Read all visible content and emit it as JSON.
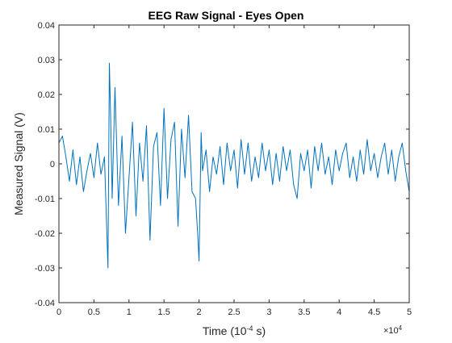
{
  "chart_data": {
    "type": "line",
    "title": "EEG Raw Signal - Eyes Open",
    "xlabel": "Time (10",
    "xlabel_exponent": "-4",
    "xlabel_suffix": " s)",
    "ylabel": "Measured Signal (V)",
    "x_multiplier_base": "×10",
    "x_multiplier_exponent": "4",
    "xlim": [
      0,
      5
    ],
    "ylim": [
      -0.04,
      0.04
    ],
    "xticks": [
      0,
      0.5,
      1,
      1.5,
      2,
      2.5,
      3,
      3.5,
      4,
      4.5,
      5
    ],
    "xtick_labels": [
      "0",
      "0.5",
      "1",
      "1.5",
      "2",
      "2.5",
      "3",
      "3.5",
      "4",
      "4.5",
      "5"
    ],
    "yticks": [
      -0.04,
      -0.03,
      -0.02,
      -0.01,
      0,
      0.01,
      0.02,
      0.03,
      0.04
    ],
    "ytick_labels": [
      "-0.04",
      "-0.03",
      "-0.02",
      "-0.01",
      "0",
      "0.01",
      "0.02",
      "0.03",
      "0.04"
    ],
    "grid": false,
    "box": true,
    "series": [
      {
        "color": "#0072BD",
        "x": [
          0,
          0.05,
          0.1,
          0.15,
          0.2,
          0.25,
          0.3,
          0.35,
          0.4,
          0.45,
          0.5,
          0.55,
          0.6,
          0.65,
          0.7,
          0.72,
          0.74,
          0.76,
          0.8,
          0.85,
          0.9,
          0.95,
          1.0,
          1.05,
          1.1,
          1.15,
          1.2,
          1.25,
          1.3,
          1.35,
          1.4,
          1.45,
          1.5,
          1.55,
          1.6,
          1.65,
          1.7,
          1.75,
          1.8,
          1.85,
          1.9,
          1.95,
          1.98,
          2.0,
          2.03,
          2.05,
          2.1,
          2.15,
          2.2,
          2.25,
          2.3,
          2.35,
          2.4,
          2.45,
          2.5,
          2.55,
          2.6,
          2.65,
          2.7,
          2.75,
          2.8,
          2.85,
          2.9,
          2.95,
          3.0,
          3.05,
          3.1,
          3.15,
          3.2,
          3.25,
          3.3,
          3.35,
          3.4,
          3.45,
          3.5,
          3.55,
          3.6,
          3.65,
          3.7,
          3.75,
          3.8,
          3.85,
          3.9,
          3.95,
          4.0,
          4.05,
          4.1,
          4.15,
          4.2,
          4.25,
          4.3,
          4.35,
          4.4,
          4.45,
          4.5,
          4.55,
          4.6,
          4.65,
          4.7,
          4.75,
          4.8,
          4.85,
          4.9,
          4.95,
          5.0
        ],
        "y": [
          0.006,
          0.008,
          0.002,
          -0.005,
          0.004,
          -0.006,
          0.002,
          -0.008,
          -0.002,
          0.003,
          -0.004,
          0.006,
          -0.003,
          0.002,
          -0.03,
          0.029,
          0.012,
          -0.01,
          0.022,
          -0.012,
          0.008,
          -0.02,
          -0.004,
          0.012,
          -0.015,
          0.006,
          -0.005,
          0.011,
          -0.022,
          0.005,
          0.009,
          -0.012,
          0.016,
          -0.01,
          0.007,
          0.012,
          -0.018,
          0.01,
          -0.004,
          0.014,
          -0.008,
          -0.01,
          -0.02,
          -0.028,
          0.009,
          -0.002,
          0.004,
          -0.008,
          0.002,
          -0.003,
          0.005,
          -0.006,
          0.006,
          -0.002,
          0.004,
          -0.007,
          0.007,
          -0.003,
          0.006,
          -0.005,
          0.002,
          -0.004,
          0.006,
          -0.002,
          0.004,
          -0.006,
          0.003,
          -0.005,
          0.005,
          -0.002,
          0.004,
          -0.006,
          -0.01,
          0.003,
          -0.002,
          0.004,
          -0.007,
          0.005,
          -0.002,
          0.006,
          -0.003,
          0.002,
          -0.006,
          0.004,
          -0.002,
          0.003,
          0.006,
          -0.004,
          0.002,
          -0.005,
          0.004,
          -0.003,
          0.007,
          -0.002,
          0.003,
          -0.004,
          0.002,
          0.006,
          -0.003,
          0.004,
          -0.005,
          0.002,
          0.006,
          -0.002,
          -0.008
        ]
      }
    ]
  }
}
